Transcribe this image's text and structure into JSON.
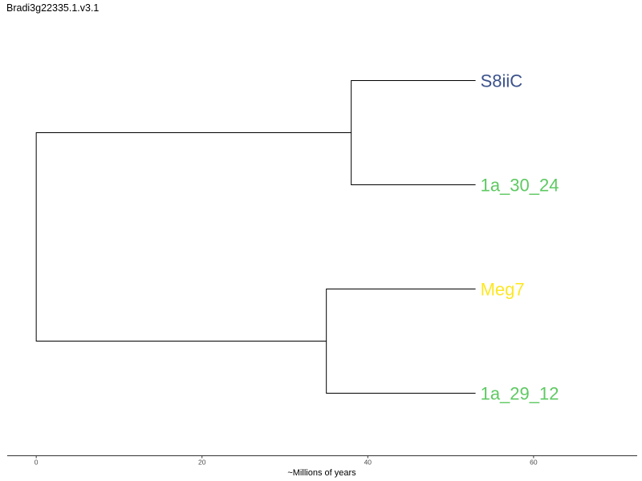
{
  "chart_data": {
    "type": "dendrogram",
    "title": "Bradi3g22335.1.v3.1",
    "xlabel": "~Millions of years",
    "xlim": [
      -3.5,
      72.5
    ],
    "ticks": [
      0,
      20,
      40,
      60
    ],
    "tip_x": 53,
    "nodes": [
      {
        "id": "root",
        "x": 0,
        "parent": null
      },
      {
        "id": "clade-top",
        "x": 38,
        "parent": "root"
      },
      {
        "id": "clade-bottom",
        "x": 35,
        "parent": "root"
      }
    ],
    "tips": [
      {
        "label": "S8iiC",
        "parent": "clade-top",
        "color": "#3b528b"
      },
      {
        "label": "1a_30_24",
        "parent": "clade-top",
        "color": "#5ec962"
      },
      {
        "label": "Meg7",
        "parent": "clade-bottom",
        "color": "#fde725"
      },
      {
        "label": "1a_29_12",
        "parent": "clade-bottom",
        "color": "#5ec962"
      }
    ]
  }
}
